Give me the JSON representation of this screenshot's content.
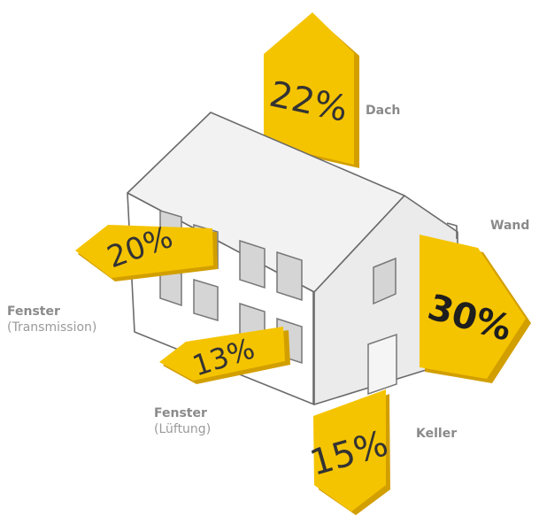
{
  "colors": {
    "arrow": "#f5c400",
    "arrow_shadow": "#d29f00",
    "house_light": "#ffffff",
    "house_shade": "#e9e9e9",
    "window": "#d4d4d4",
    "label": "#8c8c8c"
  },
  "arrows": {
    "dach": {
      "value": "22%",
      "label": "Dach"
    },
    "wand": {
      "value": "30%",
      "label": "Wand"
    },
    "fenster_transmission": {
      "value": "20%",
      "label": "Fenster",
      "sublabel": "(Transmission)"
    },
    "fenster_lueftung": {
      "value": "13%",
      "label": "Fenster",
      "sublabel": "(Lüftung)"
    },
    "keller": {
      "value": "15%",
      "label": "Keller"
    }
  }
}
